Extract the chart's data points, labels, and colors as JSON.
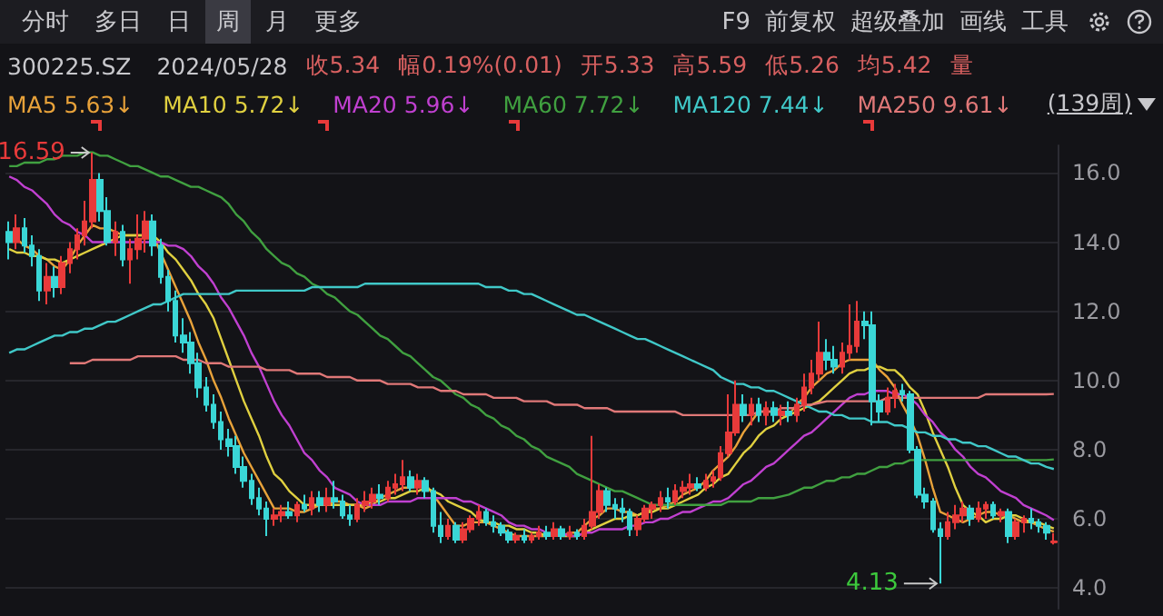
{
  "chart_data": {
    "type": "candlestick",
    "categories": [
      null,
      null,
      null,
      null,
      null,
      null,
      null,
      null,
      null,
      null,
      null,
      null,
      null,
      null,
      null,
      null,
      null,
      null,
      null,
      null,
      null,
      null,
      null,
      null,
      null,
      null,
      null,
      null,
      null,
      null,
      null,
      null,
      null,
      null,
      null,
      null,
      null,
      null,
      null,
      null,
      null,
      null,
      null,
      null,
      null,
      null,
      null,
      null,
      null,
      null,
      null,
      null,
      null,
      null,
      null,
      null,
      null,
      null,
      null,
      null,
      null,
      null,
      null,
      null,
      null,
      null,
      null,
      null,
      null,
      null,
      null,
      null,
      null,
      null,
      null,
      null,
      null,
      null,
      null,
      null,
      null,
      null,
      null,
      null,
      null,
      null,
      null,
      null,
      null,
      null,
      null,
      null,
      null,
      null,
      null,
      null,
      null,
      null,
      null,
      null,
      null,
      null,
      null,
      null,
      null,
      null,
      null,
      null,
      null,
      null,
      null,
      null,
      null,
      null,
      null,
      null,
      null,
      null,
      null,
      null,
      null,
      null,
      null,
      null,
      null,
      null,
      null,
      null,
      null,
      null,
      null,
      null,
      null,
      null,
      null,
      null,
      null,
      null,
      null
    ],
    "ohlc": [
      [
        14.3,
        14.6,
        13.5,
        14.0
      ],
      [
        14.0,
        14.8,
        13.8,
        14.4
      ],
      [
        14.4,
        14.7,
        13.7,
        13.9
      ],
      [
        13.9,
        14.2,
        13.3,
        13.6
      ],
      [
        13.6,
        13.8,
        12.3,
        12.6
      ],
      [
        12.6,
        13.4,
        12.2,
        13.0
      ],
      [
        13.0,
        13.3,
        12.4,
        12.7
      ],
      [
        12.7,
        13.6,
        12.5,
        13.4
      ],
      [
        13.4,
        14.0,
        13.1,
        13.8
      ],
      [
        13.8,
        14.4,
        13.5,
        14.2
      ],
      [
        14.2,
        15.2,
        13.9,
        14.6
      ],
      [
        14.6,
        16.59,
        14.4,
        15.8
      ],
      [
        15.8,
        16.0,
        14.6,
        14.9
      ],
      [
        14.9,
        15.3,
        13.9,
        14.0
      ],
      [
        14.0,
        14.6,
        13.6,
        14.3
      ],
      [
        14.3,
        14.5,
        13.3,
        13.5
      ],
      [
        13.5,
        14.1,
        12.8,
        13.8
      ],
      [
        13.8,
        14.8,
        13.5,
        14.1
      ],
      [
        14.1,
        14.9,
        13.7,
        14.6
      ],
      [
        14.6,
        14.8,
        13.6,
        13.9
      ],
      [
        13.9,
        14.1,
        12.8,
        13.0
      ],
      [
        13.0,
        13.2,
        12.0,
        12.3
      ],
      [
        12.3,
        12.6,
        11.1,
        11.3
      ],
      [
        11.3,
        11.8,
        10.8,
        11.1
      ],
      [
        11.1,
        11.4,
        10.2,
        10.5
      ],
      [
        10.5,
        10.8,
        9.5,
        9.8
      ],
      [
        9.8,
        10.1,
        9.1,
        9.3
      ],
      [
        9.3,
        9.6,
        8.6,
        8.8
      ],
      [
        8.8,
        9.1,
        8.0,
        8.3
      ],
      [
        8.3,
        8.6,
        7.8,
        8.1
      ],
      [
        8.1,
        8.4,
        7.3,
        7.5
      ],
      [
        7.5,
        7.8,
        6.9,
        7.1
      ],
      [
        7.1,
        7.3,
        6.4,
        6.6
      ],
      [
        6.6,
        6.9,
        6.1,
        6.3
      ],
      [
        6.3,
        6.5,
        5.5,
        6.0
      ],
      [
        6.0,
        6.3,
        5.8,
        6.1
      ],
      [
        6.1,
        6.4,
        5.9,
        6.2
      ],
      [
        6.2,
        6.5,
        6.0,
        6.1
      ],
      [
        6.1,
        6.5,
        5.9,
        6.4
      ],
      [
        6.4,
        6.7,
        6.2,
        6.3
      ],
      [
        6.3,
        6.8,
        6.1,
        6.6
      ],
      [
        6.6,
        6.8,
        6.2,
        6.4
      ],
      [
        6.4,
        6.9,
        6.2,
        6.6
      ],
      [
        6.6,
        7.1,
        6.3,
        6.5
      ],
      [
        6.5,
        6.7,
        6.0,
        6.1
      ],
      [
        6.1,
        6.4,
        5.8,
        6.0
      ],
      [
        6.0,
        6.6,
        5.9,
        6.4
      ],
      [
        6.4,
        6.8,
        6.2,
        6.5
      ],
      [
        6.5,
        6.9,
        6.3,
        6.7
      ],
      [
        6.7,
        7.0,
        6.4,
        6.6
      ],
      [
        6.6,
        7.1,
        6.5,
        6.9
      ],
      [
        6.9,
        7.3,
        6.7,
        7.0
      ],
      [
        7.0,
        7.7,
        6.8,
        7.2
      ],
      [
        7.2,
        7.4,
        6.8,
        6.9
      ],
      [
        6.9,
        7.3,
        6.7,
        7.1
      ],
      [
        7.1,
        7.2,
        6.6,
        6.8
      ],
      [
        6.8,
        6.9,
        5.6,
        5.8
      ],
      [
        5.8,
        6.2,
        5.3,
        5.5
      ],
      [
        5.5,
        6.0,
        5.4,
        5.8
      ],
      [
        5.8,
        5.9,
        5.3,
        5.4
      ],
      [
        5.4,
        5.9,
        5.3,
        5.7
      ],
      [
        5.7,
        6.1,
        5.6,
        6.0
      ],
      [
        6.0,
        6.4,
        5.8,
        6.2
      ],
      [
        6.2,
        6.3,
        5.8,
        5.9
      ],
      [
        5.9,
        6.1,
        5.6,
        5.8
      ],
      [
        5.8,
        5.9,
        5.5,
        5.6
      ],
      [
        5.6,
        5.7,
        5.3,
        5.4
      ],
      [
        5.4,
        5.6,
        5.3,
        5.5
      ],
      [
        5.5,
        5.7,
        5.3,
        5.4
      ],
      [
        5.4,
        5.6,
        5.3,
        5.5
      ],
      [
        5.5,
        5.8,
        5.4,
        5.6
      ],
      [
        5.6,
        5.8,
        5.4,
        5.5
      ],
      [
        5.5,
        5.9,
        5.4,
        5.7
      ],
      [
        5.7,
        5.8,
        5.4,
        5.5
      ],
      [
        5.5,
        5.8,
        5.4,
        5.6
      ],
      [
        5.6,
        5.7,
        5.4,
        5.5
      ],
      [
        5.5,
        6.0,
        5.4,
        5.8
      ],
      [
        5.8,
        8.4,
        5.7,
        6.2
      ],
      [
        6.2,
        7.0,
        6.0,
        6.8
      ],
      [
        6.8,
        6.9,
        6.2,
        6.4
      ],
      [
        6.4,
        6.6,
        6.0,
        6.3
      ],
      [
        6.3,
        6.6,
        5.9,
        6.2
      ],
      [
        6.2,
        6.3,
        5.5,
        5.7
      ],
      [
        5.7,
        6.1,
        5.5,
        6.0
      ],
      [
        6.0,
        6.4,
        5.9,
        6.3
      ],
      [
        6.3,
        6.5,
        6.0,
        6.4
      ],
      [
        6.4,
        6.8,
        6.2,
        6.6
      ],
      [
        6.6,
        6.9,
        6.3,
        6.5
      ],
      [
        6.5,
        7.0,
        6.4,
        6.8
      ],
      [
        6.8,
        7.1,
        6.6,
        6.9
      ],
      [
        6.9,
        7.3,
        6.7,
        7.0
      ],
      [
        7.0,
        7.2,
        6.8,
        6.9
      ],
      [
        6.9,
        7.3,
        6.8,
        7.1
      ],
      [
        7.1,
        7.4,
        6.9,
        7.2
      ],
      [
        7.2,
        8.1,
        7.1,
        7.9
      ],
      [
        7.9,
        9.6,
        7.8,
        8.5
      ],
      [
        8.5,
        10.0,
        8.4,
        9.3
      ],
      [
        9.3,
        9.6,
        8.8,
        9.0
      ],
      [
        9.0,
        9.5,
        8.7,
        9.3
      ],
      [
        9.3,
        9.5,
        8.8,
        9.0
      ],
      [
        9.0,
        9.4,
        8.7,
        9.2
      ],
      [
        9.2,
        9.4,
        8.8,
        9.0
      ],
      [
        9.0,
        9.3,
        8.7,
        9.1
      ],
      [
        9.1,
        9.4,
        8.8,
        9.0
      ],
      [
        9.0,
        9.5,
        8.8,
        9.3
      ],
      [
        9.3,
        10.2,
        9.1,
        9.8
      ],
      [
        9.8,
        10.6,
        9.6,
        10.2
      ],
      [
        10.2,
        11.7,
        10.0,
        10.8
      ],
      [
        10.8,
        11.2,
        10.3,
        10.6
      ],
      [
        10.6,
        11.0,
        10.2,
        10.4
      ],
      [
        10.4,
        11.1,
        10.2,
        10.8
      ],
      [
        10.8,
        12.2,
        10.6,
        11.0
      ],
      [
        11.0,
        12.3,
        10.8,
        11.7
      ],
      [
        11.7,
        12.0,
        11.2,
        11.6
      ],
      [
        11.6,
        12.0,
        8.7,
        9.4
      ],
      [
        9.4,
        9.6,
        8.8,
        9.1
      ],
      [
        9.1,
        9.8,
        9.0,
        9.5
      ],
      [
        9.5,
        9.9,
        9.2,
        9.7
      ],
      [
        9.7,
        9.9,
        9.4,
        9.6
      ],
      [
        9.6,
        9.7,
        7.9,
        8.0
      ],
      [
        8.0,
        8.1,
        6.6,
        6.7
      ],
      [
        6.7,
        6.9,
        6.3,
        6.5
      ],
      [
        6.5,
        6.6,
        5.6,
        5.7
      ],
      [
        5.7,
        5.9,
        4.13,
        5.5
      ],
      [
        5.5,
        6.2,
        5.4,
        5.9
      ],
      [
        5.9,
        6.4,
        5.7,
        6.1
      ],
      [
        6.1,
        6.5,
        5.9,
        6.3
      ],
      [
        6.3,
        6.4,
        5.8,
        6.0
      ],
      [
        6.0,
        6.5,
        5.9,
        6.3
      ],
      [
        6.3,
        6.5,
        6.0,
        6.4
      ],
      [
        6.4,
        6.5,
        6.0,
        6.1
      ],
      [
        6.1,
        6.3,
        5.9,
        6.2
      ],
      [
        6.2,
        6.3,
        5.3,
        5.5
      ],
      [
        5.5,
        6.0,
        5.4,
        5.9
      ],
      [
        5.9,
        6.1,
        5.6,
        6.0
      ],
      [
        6.0,
        6.3,
        5.7,
        5.9
      ],
      [
        5.9,
        6.0,
        5.6,
        5.8
      ],
      [
        5.8,
        5.9,
        5.4,
        5.6
      ],
      [
        5.33,
        5.59,
        5.26,
        5.34
      ]
    ],
    "series": [
      {
        "type": "line",
        "name": "MA5",
        "color": "#e8a23a",
        "values": [
          null,
          14.1,
          13.9,
          13.8,
          13.6,
          13.5,
          13.3,
          13.2,
          13.5,
          13.9,
          14.2,
          14.5,
          14.4,
          14.4,
          14.3,
          14.2,
          14.2,
          14.2,
          14.2,
          14.2,
          13.7,
          13.2,
          12.7,
          12.2,
          11.7,
          11.1,
          10.6,
          10.0,
          9.5,
          8.9,
          8.4,
          7.9,
          7.5,
          7.1,
          6.7,
          6.3,
          6.3,
          6.3,
          6.2,
          6.2,
          6.3,
          6.4,
          6.4,
          6.5,
          6.5,
          6.4,
          6.4,
          6.3,
          6.4,
          6.6,
          6.7,
          6.8,
          6.9,
          6.9,
          7.0,
          7.0,
          6.7,
          6.4,
          6.1,
          5.8,
          5.8,
          5.9,
          5.9,
          5.9,
          5.8,
          5.7,
          5.6,
          5.5,
          5.5,
          5.5,
          5.5,
          5.5,
          null,
          5.5,
          5.6,
          5.6,
          5.8,
          6.0,
          6.1,
          6.3,
          6.3,
          6.2,
          6.2,
          6.1,
          6.2,
          6.3,
          6.3,
          6.4,
          6.5,
          6.7,
          6.8,
          6.9,
          7.1,
          7.4,
          7.6,
          7.8,
          8.1,
          8.5,
          8.8,
          9.1,
          9.1,
          9.1,
          9.0,
          9.0,
          9.3,
          9.5,
          9.8,
          10.0,
          10.2,
          10.3,
          10.5,
          10.6,
          10.6,
          10.6,
          10.6,
          10.3,
          10.1,
          9.8,
          9.3,
          8.9,
          8.4,
          7.7,
          6.9,
          6.2,
          6.1,
          6.0,
          5.9,
          6.0,
          6.1,
          6.2,
          6.2,
          6.1,
          6.1,
          6.0,
          5.9,
          5.9,
          5.8,
          5.7,
          5.63
        ]
      },
      {
        "type": "line",
        "name": "MA10",
        "color": "#e0d040",
        "values": [
          13.8,
          13.7,
          13.7,
          13.6,
          13.6,
          13.5,
          13.5,
          13.4,
          13.5,
          13.6,
          13.7,
          13.8,
          13.9,
          14.0,
          14.1,
          14.2,
          14.2,
          14.2,
          14.2,
          14.2,
          14.0,
          13.7,
          13.5,
          13.2,
          12.9,
          12.5,
          12.2,
          11.8,
          11.2,
          10.6,
          10.0,
          9.4,
          8.9,
          8.4,
          7.8,
          7.3,
          7.1,
          6.8,
          6.6,
          6.4,
          6.4,
          6.4,
          6.4,
          6.4,
          6.4,
          6.4,
          6.4,
          6.4,
          6.5,
          6.5,
          6.6,
          6.6,
          6.7,
          6.8,
          6.8,
          6.9,
          6.8,
          6.7,
          6.5,
          6.4,
          6.3,
          6.2,
          6.0,
          5.9,
          5.9,
          5.8,
          5.8,
          5.7,
          5.7,
          5.6,
          5.6,
          5.5,
          null,
          5.5,
          5.5,
          5.5,
          5.6,
          5.7,
          5.8,
          5.9,
          6.0,
          6.0,
          6.1,
          6.1,
          6.2,
          6.2,
          6.3,
          6.3,
          6.4,
          6.5,
          6.6,
          6.7,
          6.9,
          7.0,
          7.2,
          7.3,
          7.6,
          7.9,
          8.1,
          8.4,
          8.6,
          8.7,
          8.9,
          9.0,
          9.1,
          9.2,
          9.3,
          9.4,
          9.6,
          9.8,
          10.0,
          10.2,
          10.3,
          10.3,
          10.4,
          10.4,
          10.3,
          10.3,
          10.1,
          9.8,
          9.6,
          9.1,
          8.5,
          8.0,
          7.5,
          6.9,
          6.4,
          6.2,
          6.1,
          5.9,
          6.0,
          6.0,
          6.1,
          6.1,
          6.0,
          5.9,
          5.9,
          5.8,
          5.72
        ]
      },
      {
        "type": "line",
        "name": "MA20",
        "color": "#c040d0",
        "values": [
          15.9,
          15.8,
          15.6,
          15.5,
          15.3,
          15.1,
          14.8,
          14.6,
          14.5,
          14.3,
          14.2,
          14.0,
          14.0,
          14.0,
          14.0,
          14.0,
          14.0,
          14.0,
          14.0,
          14.0,
          14.0,
          13.9,
          13.9,
          13.8,
          13.6,
          13.3,
          13.1,
          12.8,
          12.4,
          12.1,
          11.7,
          11.3,
          10.8,
          10.4,
          9.9,
          9.4,
          9.0,
          8.7,
          8.3,
          7.9,
          7.7,
          7.4,
          7.2,
          6.9,
          6.8,
          6.7,
          6.5,
          6.4,
          6.4,
          6.4,
          6.5,
          6.5,
          6.5,
          6.5,
          6.6,
          6.6,
          6.6,
          6.6,
          6.6,
          6.6,
          6.5,
          6.5,
          6.4,
          6.3,
          6.2,
          6.1,
          5.9,
          5.8,
          5.8,
          5.7,
          5.7,
          5.6,
          null,
          5.6,
          5.5,
          5.5,
          5.6,
          5.6,
          5.7,
          5.7,
          5.7,
          5.7,
          5.8,
          5.8,
          5.9,
          5.9,
          6.0,
          6.0,
          6.1,
          6.2,
          6.2,
          6.3,
          6.4,
          6.5,
          6.5,
          6.6,
          6.8,
          7.0,
          7.1,
          7.3,
          7.5,
          7.6,
          7.8,
          8.0,
          8.2,
          8.4,
          8.5,
          8.7,
          8.9,
          9.1,
          9.3,
          9.5,
          9.6,
          9.6,
          9.7,
          9.7,
          9.7,
          9.6,
          9.6,
          9.5,
          9.3,
          9.0,
          8.8,
          8.5,
          8.3,
          8.0,
          7.8,
          7.5,
          7.3,
          7.2,
          7.0,
          6.8,
          6.7,
          6.6,
          6.4,
          6.3,
          6.2,
          6.1,
          5.96
        ]
      },
      {
        "type": "line",
        "name": "MA60",
        "color": "#40a040",
        "values": [
          16.2,
          16.2,
          16.3,
          16.3,
          16.3,
          16.4,
          16.4,
          16.5,
          16.5,
          16.5,
          16.6,
          16.6,
          16.5,
          16.5,
          16.4,
          16.3,
          16.2,
          16.2,
          16.1,
          16.0,
          15.9,
          15.9,
          15.8,
          15.7,
          15.6,
          15.6,
          15.5,
          15.4,
          15.3,
          15.1,
          14.8,
          14.6,
          14.3,
          14.1,
          13.8,
          13.6,
          13.4,
          13.3,
          13.1,
          13.0,
          12.8,
          12.7,
          12.5,
          12.4,
          12.2,
          12.0,
          11.9,
          11.7,
          11.5,
          11.3,
          11.2,
          11.0,
          10.8,
          10.7,
          10.5,
          10.3,
          10.1,
          10.0,
          9.8,
          9.6,
          9.5,
          9.3,
          9.2,
          9.0,
          8.9,
          8.7,
          8.6,
          8.4,
          8.3,
          8.1,
          8.0,
          7.8,
          7.7,
          7.6,
          7.5,
          7.3,
          7.2,
          7.1,
          7.0,
          6.9,
          6.8,
          6.8,
          6.7,
          6.6,
          6.5,
          6.4,
          6.4,
          6.4,
          6.4,
          6.4,
          6.4,
          6.4,
          6.4,
          6.4,
          6.4,
          6.5,
          6.5,
          6.5,
          6.5,
          6.6,
          6.6,
          6.6,
          6.65,
          6.7,
          6.8,
          6.9,
          6.9,
          7.0,
          7.1,
          7.1,
          7.2,
          7.2,
          7.3,
          7.3,
          7.4,
          7.5,
          7.5,
          7.6,
          7.6,
          7.7,
          7.7,
          7.7,
          7.7,
          7.7,
          7.7,
          7.7,
          7.7,
          7.7,
          7.7,
          7.7,
          7.7,
          7.7,
          7.7,
          7.7,
          7.7,
          7.7,
          7.7,
          7.7,
          7.72
        ]
      },
      {
        "type": "line",
        "name": "MA120",
        "color": "#40c8c8",
        "values": [
          10.8,
          10.9,
          10.9,
          11.0,
          11.1,
          11.2,
          11.3,
          11.3,
          11.4,
          11.4,
          11.5,
          11.5,
          11.6,
          11.7,
          11.7,
          11.8,
          11.9,
          12.0,
          12.1,
          12.2,
          12.2,
          12.3,
          12.4,
          12.5,
          12.5,
          12.5,
          12.5,
          12.5,
          12.5,
          12.5,
          12.6,
          12.6,
          12.6,
          12.6,
          12.6,
          12.6,
          12.6,
          12.6,
          12.6,
          12.6,
          12.7,
          12.7,
          12.7,
          12.7,
          12.7,
          12.7,
          12.7,
          12.8,
          12.8,
          12.8,
          12.8,
          12.8,
          12.8,
          12.8,
          12.8,
          12.8,
          12.8,
          12.8,
          12.8,
          12.8,
          12.8,
          12.8,
          12.8,
          12.7,
          12.7,
          12.7,
          12.6,
          12.6,
          12.5,
          12.5,
          12.4,
          12.3,
          12.2,
          12.1,
          12.0,
          11.9,
          11.9,
          11.8,
          11.7,
          11.6,
          11.5,
          11.4,
          11.3,
          11.2,
          11.2,
          11.1,
          11.0,
          10.9,
          10.8,
          10.7,
          10.6,
          10.5,
          10.4,
          10.3,
          10.1,
          10.0,
          9.9,
          9.9,
          9.8,
          9.8,
          9.7,
          9.7,
          9.6,
          9.5,
          9.4,
          9.3,
          9.2,
          9.1,
          9.1,
          9.0,
          9.0,
          8.9,
          8.9,
          8.9,
          8.8,
          8.8,
          8.8,
          8.7,
          8.7,
          8.6,
          8.5,
          8.5,
          8.4,
          8.4,
          8.3,
          8.3,
          8.2,
          8.2,
          8.1,
          8.1,
          8.0,
          7.9,
          7.8,
          7.8,
          7.7,
          7.6,
          7.6,
          7.5,
          7.44
        ]
      },
      {
        "type": "line",
        "name": "MA250",
        "color": "#e07878",
        "values": [
          null,
          null,
          null,
          null,
          null,
          null,
          null,
          null,
          10.5,
          10.5,
          10.5,
          10.6,
          10.6,
          10.6,
          10.6,
          10.6,
          10.6,
          10.7,
          10.7,
          10.7,
          10.7,
          10.7,
          10.7,
          10.6,
          10.6,
          10.6,
          10.5,
          10.5,
          10.5,
          10.4,
          10.4,
          10.4,
          10.4,
          10.4,
          10.3,
          10.3,
          10.3,
          10.3,
          10.2,
          10.2,
          10.2,
          10.2,
          10.1,
          10.1,
          10.1,
          10.1,
          10.0,
          10.0,
          10.0,
          10.0,
          9.9,
          9.9,
          9.9,
          9.9,
          9.8,
          9.8,
          9.8,
          9.7,
          9.7,
          9.7,
          9.6,
          9.6,
          9.6,
          9.6,
          9.5,
          9.5,
          9.5,
          9.5,
          9.4,
          9.4,
          9.4,
          9.4,
          9.3,
          9.3,
          9.3,
          9.3,
          9.2,
          9.2,
          9.2,
          9.2,
          9.1,
          9.1,
          9.1,
          9.1,
          9.1,
          9.1,
          9.1,
          9.1,
          9.1,
          9.0,
          9.0,
          9.0,
          9.0,
          9.0,
          9.0,
          9.0,
          9.0,
          9.0,
          9.0,
          9.1,
          9.1,
          9.1,
          9.2,
          9.2,
          9.2,
          9.3,
          9.3,
          9.35,
          9.4,
          9.4,
          9.4,
          9.4,
          9.4,
          9.4,
          9.4,
          9.4,
          9.5,
          9.5,
          9.5,
          9.5,
          9.5,
          9.5,
          9.5,
          9.5,
          9.5,
          9.5,
          9.5,
          9.5,
          9.5,
          9.6,
          9.6,
          9.6,
          9.6,
          9.6,
          9.6,
          9.6,
          9.6,
          9.6,
          9.61
        ]
      }
    ],
    "ylim": [
      3.4,
      16.8
    ],
    "yticks": [
      {
        "value": 4,
        "label": "4.0"
      },
      {
        "value": 6,
        "label": "6.0"
      },
      {
        "value": 8,
        "label": "8.0"
      },
      {
        "value": 10,
        "label": "10.0"
      },
      {
        "value": 12,
        "label": "12.0"
      },
      {
        "value": 14,
        "label": "14.0"
      },
      {
        "value": 16,
        "label": "16.0"
      }
    ],
    "tick_labels": "y",
    "grid": "y",
    "legend": "top",
    "annotations": [
      "分时",
      "多日",
      "日",
      "周",
      "月",
      "更多",
      "F9",
      "前复权",
      "超级叠加",
      "画线",
      "工具",
      "300225.SZ",
      "2024/05/28",
      "收5.34",
      "幅0.19%(0.01)",
      "开5.33",
      "高5.59",
      "低5.26",
      "均5.42",
      "量",
      "5.63↓",
      "5.72↓",
      "5.96↓",
      "7.72↓",
      "7.44↓",
      "9.61↓",
      "(139周)",
      "4.13",
      {
        "text": "16.59",
        "y": 16.59
      }
    ]
  }
}
